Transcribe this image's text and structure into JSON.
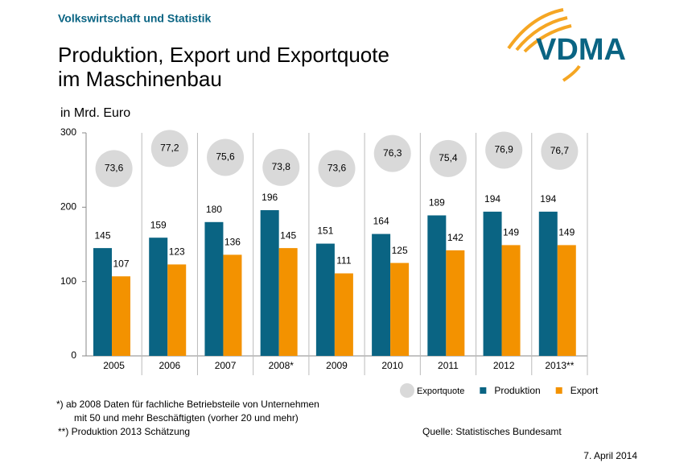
{
  "header": {
    "section": "Volkswirtschaft und Statistik",
    "logo": "VDMA"
  },
  "chart_data": {
    "type": "bar",
    "title": [
      "Produktion, Export und Exportquote",
      "im Maschinenbau"
    ],
    "y_label": "in Mrd. Euro",
    "categories": [
      "2005",
      "2006",
      "2007",
      "2008*",
      "2009",
      "2010",
      "2011",
      "2012",
      "2013**"
    ],
    "series": [
      {
        "name": "Produktion",
        "color": "#0a6483",
        "values": [
          145,
          159,
          180,
          196,
          151,
          164,
          189,
          194,
          194
        ]
      },
      {
        "name": "Export",
        "color": "#f39200",
        "values": [
          107,
          123,
          136,
          145,
          111,
          125,
          142,
          149,
          149
        ]
      },
      {
        "name": "Exportquote",
        "color": "#d9d9d9",
        "axis": "y2",
        "marker": "circle",
        "values": [
          73.6,
          77.2,
          75.6,
          73.8,
          73.6,
          76.3,
          75.4,
          76.9,
          76.7
        ],
        "value_labels": [
          "73,6",
          "77,2",
          "75,6",
          "73,8",
          "73,6",
          "76,3",
          "75,4",
          "76,9",
          "76,7"
        ]
      }
    ],
    "ylim": [
      0,
      300
    ],
    "yticks": [
      0,
      100,
      200,
      300
    ],
    "y2lim": [
      40,
      80
    ],
    "grid": false
  },
  "footnotes": [
    "*)   ab 2008 Daten für fachliche Betriebsteile von Unternehmen",
    "mit 50 und mehr Beschäftigten (vorher 20 und mehr)",
    "**) Produktion 2013 Schätzung"
  ],
  "source": "Quelle: Statistisches Bundesamt",
  "date": "7. April 2014"
}
